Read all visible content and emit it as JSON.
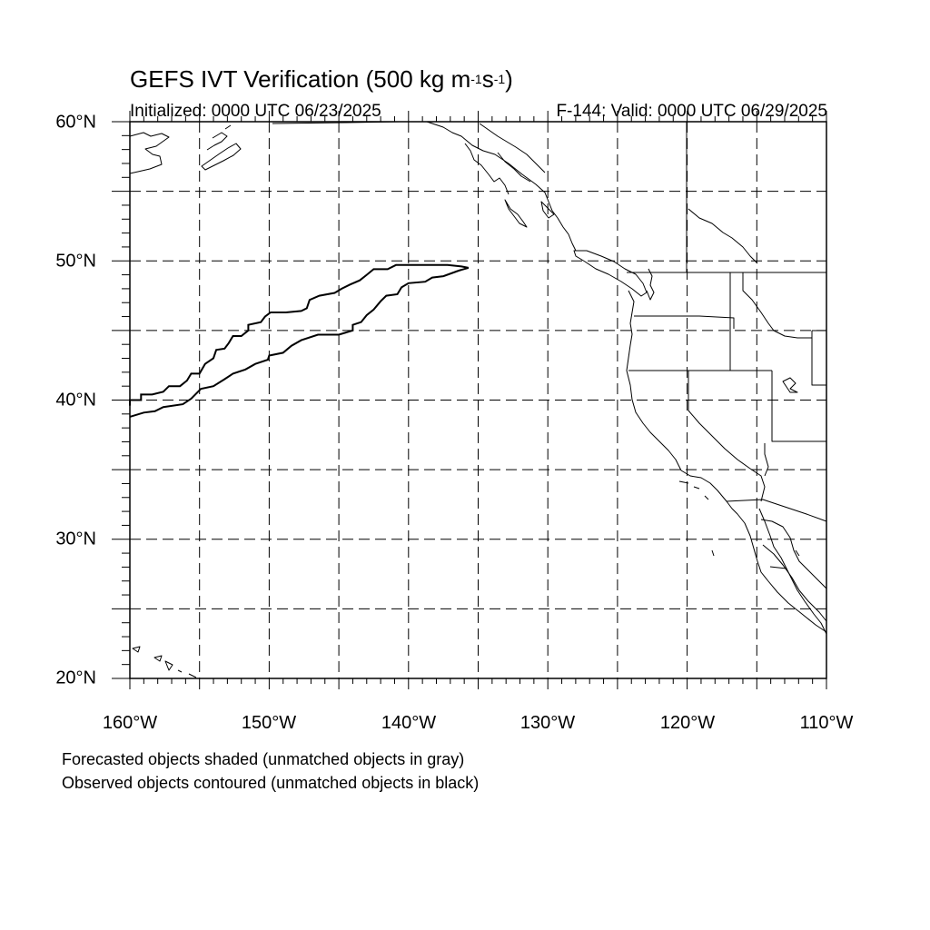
{
  "title": {
    "main": "GEFS IVT Verification (500 kg m",
    "exp1": "-1",
    "mid": "s",
    "exp2": "-1",
    "close": ")"
  },
  "initialized": "Initialized: 0000 UTC 06/23/2025",
  "valid": "F-144: Valid: 0000 UTC 06/29/2025",
  "lat_labels": [
    {
      "id": "60",
      "text": "60°N"
    },
    {
      "id": "50",
      "text": "50°N"
    },
    {
      "id": "40",
      "text": "40°N"
    },
    {
      "id": "30",
      "text": "30°N"
    },
    {
      "id": "20",
      "text": "20°N"
    }
  ],
  "lon_labels": [
    {
      "id": "160w",
      "text": "160°W"
    },
    {
      "id": "150w",
      "text": "150°W"
    },
    {
      "id": "140w",
      "text": "140°W"
    },
    {
      "id": "130w",
      "text": "130°W"
    },
    {
      "id": "120w",
      "text": "120°W"
    },
    {
      "id": "110w",
      "text": "110°W"
    }
  ],
  "notes": {
    "forecast": "Forecasted objects shaded (unmatched objects in gray)",
    "observed": "Observed objects contoured (unmatched objects in black)"
  },
  "map_extent": {
    "lon_min": -160,
    "lon_max": -110,
    "lat_min": 20,
    "lat_max": 60
  },
  "grid_spacing_deg": 5,
  "observed_object": {
    "status": "unmatched",
    "color": "#000000",
    "outline_lonlat": [
      [
        -160,
        39.6
      ],
      [
        -160,
        40
      ],
      [
        -159.2,
        40
      ],
      [
        -159.2,
        40.4
      ],
      [
        -158.4,
        40.4
      ],
      [
        -157.6,
        40.6
      ],
      [
        -157.2,
        41
      ],
      [
        -156.4,
        41
      ],
      [
        -155.9,
        41.4
      ],
      [
        -155.6,
        41.9
      ],
      [
        -155,
        41.9
      ],
      [
        -154.6,
        42.6
      ],
      [
        -154,
        43
      ],
      [
        -153.8,
        43.6
      ],
      [
        -153.2,
        43.7
      ],
      [
        -152.9,
        44.1
      ],
      [
        -152.6,
        44.6
      ],
      [
        -152,
        44.6
      ],
      [
        -151.5,
        45
      ],
      [
        -151.5,
        45.4
      ],
      [
        -150.6,
        45.6
      ],
      [
        -150.3,
        46
      ],
      [
        -149.9,
        46.3
      ],
      [
        -148.8,
        46.3
      ],
      [
        -147.7,
        46.4
      ],
      [
        -147.3,
        46.6
      ],
      [
        -147.1,
        47.2
      ],
      [
        -146.4,
        47.5
      ],
      [
        -145.3,
        47.7
      ],
      [
        -144.8,
        48
      ],
      [
        -144.2,
        48.3
      ],
      [
        -143.5,
        48.6
      ],
      [
        -143,
        49
      ],
      [
        -142.5,
        49.4
      ],
      [
        -141.5,
        49.4
      ],
      [
        -140.9,
        49.7
      ],
      [
        -139.6,
        49.7
      ],
      [
        -138.4,
        49.7
      ],
      [
        -137.2,
        49.7
      ],
      [
        -136.2,
        49.6
      ],
      [
        -135.7,
        49.5
      ],
      [
        -136.4,
        49.3
      ],
      [
        -137.5,
        48.9
      ],
      [
        -138.3,
        48.8
      ],
      [
        -138.8,
        48.5
      ],
      [
        -140,
        48.4
      ],
      [
        -140.5,
        48.1
      ],
      [
        -140.8,
        47.6
      ],
      [
        -141.6,
        47.5
      ],
      [
        -142,
        47.1
      ],
      [
        -142.5,
        46.5
      ],
      [
        -143,
        46.1
      ],
      [
        -143.4,
        45.6
      ],
      [
        -144,
        45.4
      ],
      [
        -144,
        45
      ],
      [
        -145,
        44.7
      ],
      [
        -146.5,
        44.7
      ],
      [
        -147.7,
        44.3
      ],
      [
        -148.4,
        43.9
      ],
      [
        -149,
        43.4
      ],
      [
        -150,
        43.2
      ],
      [
        -150.1,
        42.9
      ],
      [
        -151,
        42.6
      ],
      [
        -151.7,
        42.2
      ],
      [
        -152.6,
        41.9
      ],
      [
        -153.2,
        41.5
      ],
      [
        -154,
        41
      ],
      [
        -154.9,
        40.8
      ],
      [
        -155.6,
        40.1
      ],
      [
        -156.2,
        39.7
      ],
      [
        -157.6,
        39.5
      ],
      [
        -158.2,
        39.2
      ],
      [
        -159,
        39.1
      ],
      [
        -160,
        38.8
      ]
    ]
  }
}
